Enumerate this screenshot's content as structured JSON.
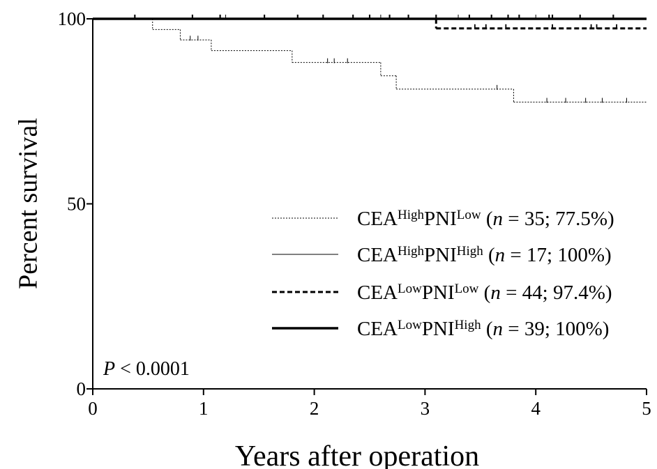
{
  "chart_data": {
    "type": "step",
    "x_label": "Years after operation",
    "y_label": "Percent survival",
    "annotation": [
      "P",
      " < 0.0001"
    ],
    "xlim": [
      0,
      5
    ],
    "xticks": [
      0,
      1,
      2,
      3,
      4,
      5
    ],
    "ylim": [
      0,
      100
    ],
    "yticks": [
      0,
      50,
      100
    ],
    "series": [
      {
        "name": [
          "CEA",
          "High",
          "PNI",
          "Low",
          " (",
          "n",
          " = 35; 77.5%)"
        ],
        "color": "#000000",
        "width": 1,
        "dash": "2,2",
        "x": [
          0,
          0.54,
          0.79,
          1.07,
          1.8,
          2.6,
          2.74,
          3.8,
          5
        ],
        "values": [
          100,
          97.1,
          94.3,
          91.4,
          88.2,
          84.6,
          81.0,
          77.5,
          77.5
        ],
        "censored": [
          0.88,
          0.95,
          2.12,
          2.18,
          2.3,
          3.65,
          4.1,
          4.27,
          4.45,
          4.6,
          4.82
        ]
      },
      {
        "name": [
          "CEA",
          "High",
          "PNI",
          "High",
          " (",
          "n",
          " = 17; 100%)"
        ],
        "color": "#000000",
        "width": 1,
        "dash": "none",
        "x": [
          0,
          5
        ],
        "values": [
          100,
          100
        ],
        "censored": [
          1.2,
          2.6,
          3.3,
          4.0
        ]
      },
      {
        "name": [
          "CEA",
          "Low",
          "PNI",
          "Low",
          " (",
          "n",
          " = 44; 97.4%)"
        ],
        "color": "#000000",
        "width": 3,
        "dash": "7,4",
        "x": [
          0,
          3.1,
          5
        ],
        "values": [
          100,
          97.4,
          97.4
        ],
        "censored": [
          3.45,
          3.55,
          3.73,
          4.15,
          4.5,
          4.55,
          4.73
        ]
      },
      {
        "name": [
          "CEA",
          "Low",
          "PNI",
          "High",
          " (",
          "n",
          " = 39; 100%)"
        ],
        "color": "#000000",
        "width": 3.5,
        "dash": "none",
        "x": [
          0,
          5
        ],
        "values": [
          100,
          100
        ],
        "censored": [
          0.38,
          0.9,
          1.15,
          1.55,
          1.85,
          2.08,
          2.35,
          2.5,
          2.68,
          2.85,
          3.1,
          3.4,
          3.6,
          3.75,
          3.85,
          4.12,
          4.15,
          4.4,
          4.7
        ]
      }
    ]
  }
}
